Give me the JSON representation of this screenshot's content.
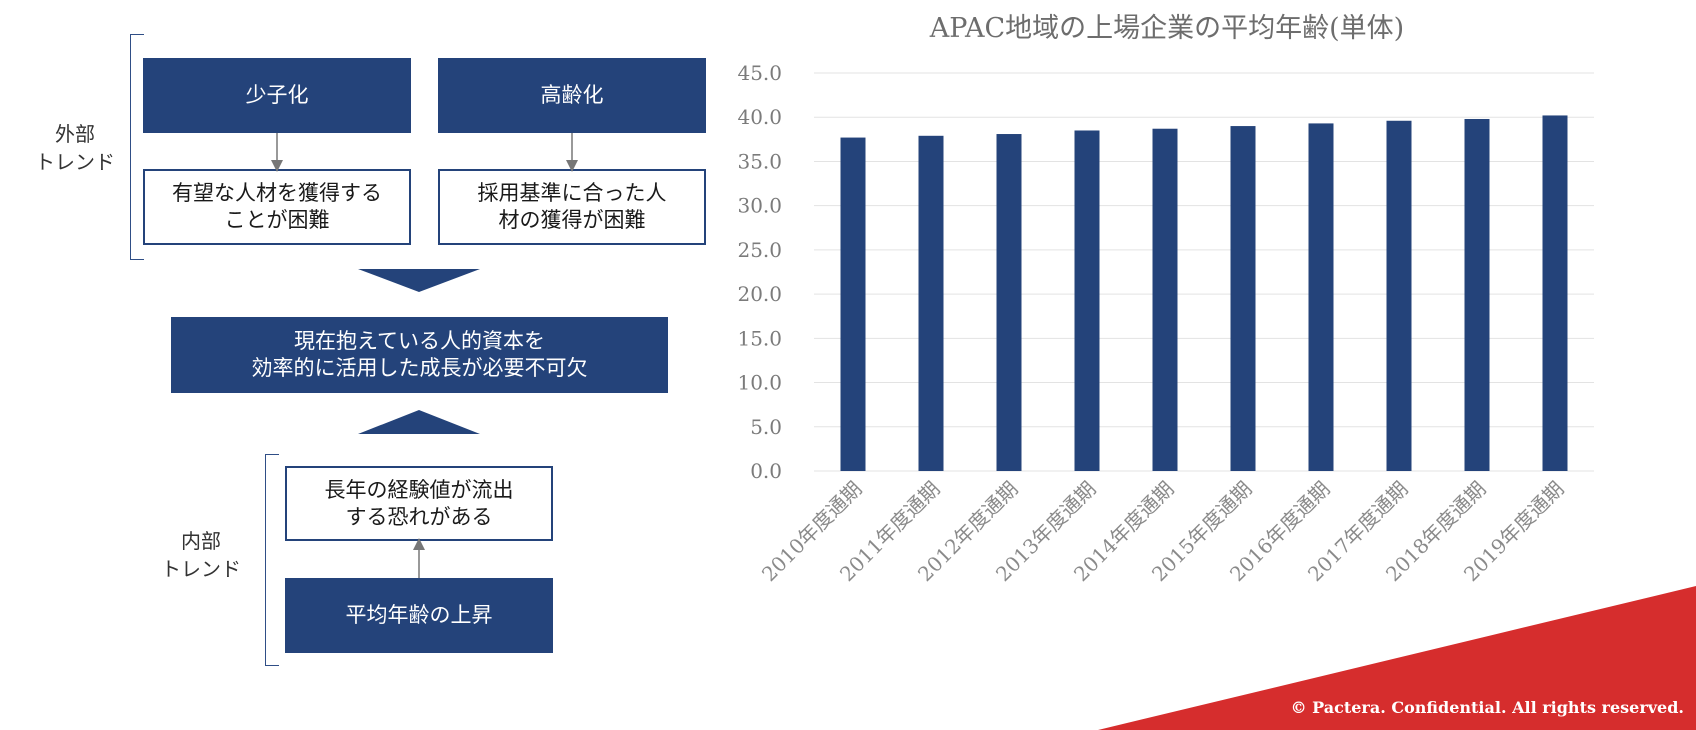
{
  "diagram": {
    "external_label": "外部\nトレンド",
    "internal_label": "内部\nトレンド",
    "box_declining_birthrate": "少子化",
    "box_aging": "高齢化",
    "box_talent_hard": "有望な人材を獲得する\nことが困難",
    "box_criteria_hard": "採用基準に合った人\n材の獲得が困難",
    "box_conclusion": "現在抱えている人的資本を\n効率的に活用した成長が必要不可欠",
    "box_experience_loss": "長年の経験値が流出\nする恐れがある",
    "box_avg_age_rise": "平均年齢の上昇"
  },
  "chart_data": {
    "type": "bar",
    "title": "APAC地域の上場企業の平均年齢(単体)",
    "categories": [
      "2010年度通期",
      "2011年度通期",
      "2012年度通期",
      "2013年度通期",
      "2014年度通期",
      "2015年度通期",
      "2016年度通期",
      "2017年度通期",
      "2018年度通期",
      "2019年度通期"
    ],
    "values": [
      37.7,
      37.9,
      38.1,
      38.5,
      38.7,
      39.0,
      39.3,
      39.6,
      39.8,
      40.2
    ],
    "ylim": [
      0,
      45
    ],
    "yticks": [
      "0.0",
      "5.0",
      "10.0",
      "15.0",
      "20.0",
      "25.0",
      "30.0",
      "35.0",
      "40.0",
      "45.0"
    ],
    "xlabel": "",
    "ylabel": "",
    "grid": true,
    "bar_color": "#24437a"
  },
  "footer": {
    "copyright": "© Pactera.  Confidential.  All rights reserved.",
    "accent_color": "#d62d2d"
  }
}
